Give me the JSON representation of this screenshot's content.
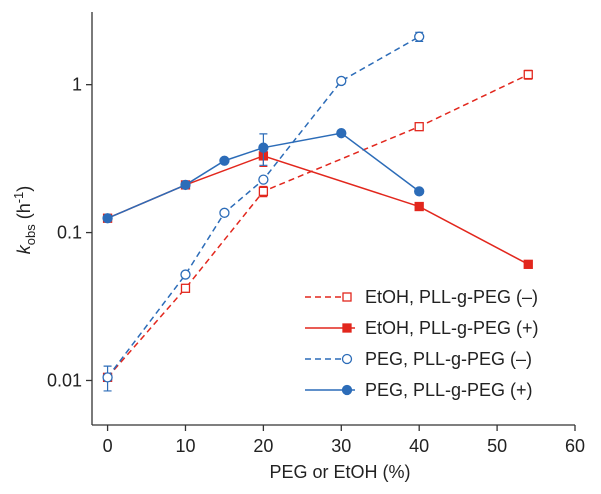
{
  "chart_data": {
    "type": "line",
    "x_label": "PEG or EtOH (%)",
    "y_label_parts": [
      "k",
      "obs",
      " (h",
      "-1",
      ")"
    ],
    "log_y": true,
    "xlim": [
      -2,
      60
    ],
    "xticks": [
      0,
      10,
      20,
      30,
      40,
      50,
      60
    ],
    "ylim": [
      0.005,
      3.1
    ],
    "yticks": [
      0.01,
      0.1,
      1
    ],
    "legend": "lower right",
    "series": [
      {
        "name": "EtOH, PLL-g-PEG (–)",
        "color": "#e2271d",
        "dashed": true,
        "marker": "square",
        "filled": false,
        "x": [
          0,
          10,
          20,
          40,
          54
        ],
        "values": [
          0.0105,
          0.042,
          0.19,
          0.52,
          1.17
        ],
        "errors": [
          null,
          null,
          0.015,
          null,
          0.08
        ]
      },
      {
        "name": "EtOH, PLL-g-PEG (+)",
        "color": "#e2271d",
        "dashed": false,
        "marker": "square",
        "filled": true,
        "x": [
          0,
          10,
          20,
          40,
          54
        ],
        "values": [
          0.125,
          0.21,
          0.33,
          0.15,
          0.061
        ],
        "errors": [
          null,
          null,
          0.05,
          null,
          null
        ]
      },
      {
        "name": "PEG, PLL-g-PEG (–)",
        "color": "#2c6cb8",
        "dashed": true,
        "marker": "circle",
        "filled": false,
        "x": [
          0,
          10,
          15,
          20,
          30,
          40
        ],
        "values": [
          0.0105,
          0.052,
          0.136,
          0.228,
          1.06,
          2.11
        ],
        "errors": [
          0.002,
          null,
          null,
          null,
          0.05,
          0.15
        ]
      },
      {
        "name": "PEG, PLL-g-PEG (+)",
        "color": "#2c6cb8",
        "dashed": false,
        "marker": "circle",
        "filled": true,
        "x": [
          0,
          10,
          15,
          20,
          30,
          40
        ],
        "values": [
          0.125,
          0.21,
          0.306,
          0.375,
          0.47,
          0.19
        ],
        "errors": [
          null,
          null,
          null,
          0.09,
          null,
          null
        ]
      }
    ]
  }
}
